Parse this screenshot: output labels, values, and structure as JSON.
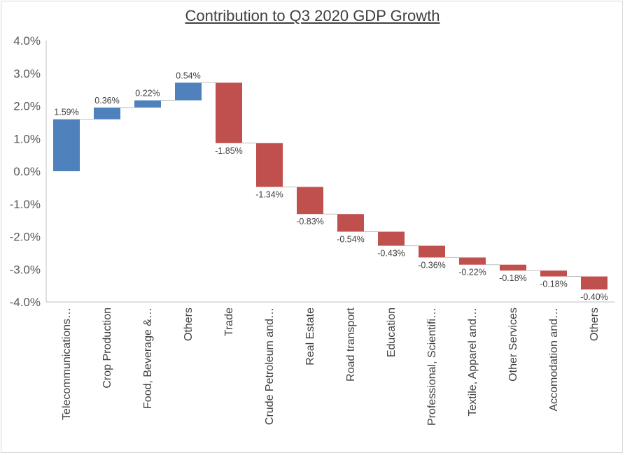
{
  "chart_data": {
    "type": "bar",
    "subtype": "waterfall",
    "title": "Contribution to Q3 2020 GDP Growth",
    "xlabel": "",
    "ylabel": "",
    "ylim": [
      -4,
      4
    ],
    "yticks": [
      "4.0%",
      "3.0%",
      "2.0%",
      "1.0%",
      "0.0%",
      "-1.0%",
      "-2.0%",
      "-3.0%",
      "-4.0%"
    ],
    "categories": [
      "Telecommunications…",
      "Crop Production",
      "Food, Beverage &…",
      "Others",
      "Trade",
      "Crude Petroleum and…",
      "Real Estate",
      "Road transport",
      "Education",
      "Professional, Scientifi…",
      "Textile, Apparel and…",
      "Other Services",
      "Accomodation and…",
      "Others"
    ],
    "values": [
      1.59,
      0.36,
      0.22,
      0.54,
      -1.85,
      -1.34,
      -0.83,
      -0.54,
      -0.43,
      -0.36,
      -0.22,
      -0.18,
      -0.18,
      -0.4
    ],
    "data_labels": [
      "1.59%",
      "0.36%",
      "0.22%",
      "0.54%",
      "-1.85%",
      "-1.34%",
      "-0.83%",
      "-0.54%",
      "-0.43%",
      "-0.36%",
      "-0.22%",
      "-0.18%",
      "-0.18%",
      "-0.40%"
    ],
    "colors": {
      "increase": "#4f81bd",
      "decrease": "#c0504d",
      "connector": "#bfbfbf",
      "axis": "#bfbfbf"
    },
    "grid": false,
    "legend": "none"
  }
}
